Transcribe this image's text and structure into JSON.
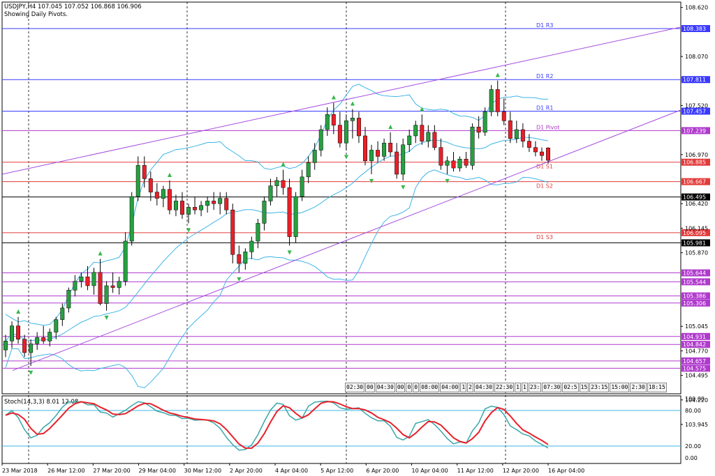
{
  "header": {
    "symbol_line": "USDJPY,H4  107.045 107.052 106.868 106.906",
    "subtitle": "Showing Daily Pivots."
  },
  "stoch_header": "Stoch(14,3,3) 8.01 12.08",
  "price_axis": {
    "min": 103.7,
    "max": 108.8,
    "ticks": [
      "108.620",
      "108.383",
      "108.070",
      "107.811",
      "107.520",
      "107.457",
      "107.239",
      "106.970",
      "106.885",
      "106.667",
      "106.495",
      "106.420",
      "106.145",
      "106.095",
      "105.981",
      "105.870",
      "105.644",
      "105.544",
      "105.386",
      "105.306",
      "105.045",
      "104.931",
      "104.842",
      "104.770",
      "104.657",
      "104.575",
      "104.495",
      "104.220",
      "103.945"
    ]
  },
  "levels": [
    {
      "label": "D1 R3",
      "value": 108.383,
      "tag": "108.383",
      "color": "#3a3aff"
    },
    {
      "label": "D1 R2",
      "value": 107.811,
      "tag": "107.811",
      "color": "#3a3aff"
    },
    {
      "label": "D1 R1",
      "value": 107.457,
      "tag": "107.457",
      "color": "#3a3aff"
    },
    {
      "label": "D1 Pivot",
      "value": 107.239,
      "tag": "107.239",
      "color": "#b03acd"
    },
    {
      "label": "D1 S1",
      "value": 106.885,
      "tag": "106.885",
      "color": "#e33a3a"
    },
    {
      "label": "D1 S2",
      "value": 106.667,
      "tag": "106.667",
      "color": "#e33a3a"
    },
    {
      "label": "",
      "value": 106.495,
      "tag": "106.495",
      "color": "#000000"
    },
    {
      "label": "D1 S3",
      "value": 106.095,
      "tag": "106.095",
      "color": "#e33a3a"
    },
    {
      "label": "",
      "value": 105.981,
      "tag": "105.981",
      "color": "#000000"
    },
    {
      "label": "",
      "value": 105.644,
      "tag": "105.644",
      "color": "#b03acd"
    },
    {
      "label": "",
      "value": 105.544,
      "tag": "105.544",
      "color": "#b03acd"
    },
    {
      "label": "",
      "value": 105.386,
      "tag": "105.386",
      "color": "#b03acd"
    },
    {
      "label": "",
      "value": 105.306,
      "tag": "105.306",
      "color": "#b03acd"
    },
    {
      "label": "",
      "value": 104.931,
      "tag": "104.931",
      "color": "#b03acd"
    },
    {
      "label": "",
      "value": 104.842,
      "tag": "104.842",
      "color": "#b03acd"
    },
    {
      "label": "",
      "value": 104.657,
      "tag": "104.657",
      "color": "#b03acd"
    },
    {
      "label": "",
      "value": 104.575,
      "tag": "104.575",
      "color": "#b03acd"
    }
  ],
  "time_axis": [
    "23 Mar 2018",
    "26 Mar 12:00",
    "27 Mar 20:00",
    "29 Mar 04:00",
    "30 Mar 12:00",
    "2 Apr 20:00",
    "4 Apr 04:00",
    "5 Apr 12:00",
    "6 Apr 20:00",
    "10 Apr 04:00",
    "11 Apr 12:00",
    "12 Apr 20:00",
    "16 Apr 04:00"
  ],
  "session_strip": [
    "02:30",
    "00",
    "04:30",
    "00",
    "0",
    "0",
    "08:00",
    "04:00",
    "1",
    "2",
    "04:30",
    "22:30",
    "1",
    "1",
    "23:",
    "07:30",
    "02:5",
    "15",
    "23:15",
    "15:00",
    "2:30",
    "18:15"
  ],
  "stoch_axis": [
    "100.00",
    "80.00",
    "20.00",
    "0.00"
  ],
  "colors": {
    "bull": "#26a041",
    "bear": "#e8202a",
    "band": "#3db4e6",
    "channel": "#a64de0",
    "signal": "#e8202a",
    "main": "#3aa7a7"
  },
  "chart_data": {
    "type": "candlestick",
    "title": "USDJPY,H4",
    "ylim": [
      103.7,
      108.8
    ],
    "series": [
      {
        "name": "USDJPY",
        "ohlc": [
          [
            104.78,
            104.95,
            104.7,
            104.88
          ],
          [
            104.88,
            105.1,
            104.8,
            105.05
          ],
          [
            105.05,
            105.15,
            104.85,
            104.9
          ],
          [
            104.9,
            104.95,
            104.7,
            104.75
          ],
          [
            104.75,
            104.9,
            104.6,
            104.85
          ],
          [
            104.85,
            104.98,
            104.78,
            104.92
          ],
          [
            104.92,
            105.05,
            104.85,
            104.88
          ],
          [
            104.88,
            105.02,
            104.82,
            104.98
          ],
          [
            104.98,
            105.15,
            104.9,
            105.12
          ],
          [
            105.12,
            105.3,
            105.05,
            105.25
          ],
          [
            105.25,
            105.48,
            105.2,
            105.45
          ],
          [
            105.45,
            105.62,
            105.38,
            105.55
          ],
          [
            105.55,
            105.65,
            105.48,
            105.6
          ],
          [
            105.6,
            105.72,
            105.45,
            105.5
          ],
          [
            105.5,
            105.7,
            105.4,
            105.65
          ],
          [
            105.65,
            105.8,
            105.28,
            105.3
          ],
          [
            105.3,
            105.55,
            105.22,
            105.5
          ],
          [
            105.5,
            105.65,
            105.42,
            105.48
          ],
          [
            105.48,
            105.6,
            105.4,
            105.55
          ],
          [
            105.55,
            106.1,
            105.5,
            106.0
          ],
          [
            106.0,
            106.55,
            105.95,
            106.5
          ],
          [
            106.5,
            106.95,
            106.45,
            106.85
          ],
          [
            106.85,
            106.95,
            106.6,
            106.7
          ],
          [
            106.7,
            106.78,
            106.45,
            106.55
          ],
          [
            106.55,
            106.65,
            106.4,
            106.48
          ],
          [
            106.48,
            106.62,
            106.38,
            106.58
          ],
          [
            106.58,
            106.68,
            106.3,
            106.35
          ],
          [
            106.35,
            106.52,
            106.28,
            106.45
          ],
          [
            106.45,
            106.55,
            106.25,
            106.3
          ],
          [
            106.3,
            106.42,
            106.2,
            106.38
          ],
          [
            106.38,
            106.5,
            106.3,
            106.35
          ],
          [
            106.35,
            106.45,
            106.28,
            106.4
          ],
          [
            106.4,
            106.5,
            106.32,
            106.45
          ],
          [
            106.45,
            106.55,
            106.35,
            106.42
          ],
          [
            106.42,
            106.55,
            106.3,
            106.48
          ],
          [
            106.48,
            106.55,
            106.3,
            106.35
          ],
          [
            106.35,
            106.42,
            105.75,
            105.85
          ],
          [
            105.85,
            105.95,
            105.65,
            105.75
          ],
          [
            105.75,
            105.92,
            105.68,
            105.88
          ],
          [
            105.88,
            106.05,
            105.8,
            106.0
          ],
          [
            106.0,
            106.25,
            105.92,
            106.2
          ],
          [
            106.2,
            106.5,
            106.12,
            106.45
          ],
          [
            106.45,
            106.7,
            106.4,
            106.62
          ],
          [
            106.62,
            106.72,
            106.5,
            106.68
          ],
          [
            106.68,
            106.8,
            106.52,
            106.6
          ],
          [
            106.6,
            106.7,
            105.95,
            106.05
          ],
          [
            106.05,
            106.55,
            105.98,
            106.5
          ],
          [
            106.5,
            106.8,
            106.45,
            106.72
          ],
          [
            106.72,
            106.95,
            106.65,
            106.88
          ],
          [
            106.88,
            107.1,
            106.8,
            107.02
          ],
          [
            107.02,
            107.3,
            106.95,
            107.25
          ],
          [
            107.25,
            107.5,
            107.18,
            107.42
          ],
          [
            107.42,
            107.55,
            107.2,
            107.3
          ],
          [
            107.3,
            107.45,
            107.05,
            107.1
          ],
          [
            107.1,
            107.42,
            107.02,
            107.35
          ],
          [
            107.35,
            107.48,
            107.15,
            107.38
          ],
          [
            107.38,
            107.45,
            107.1,
            107.18
          ],
          [
            107.18,
            107.28,
            106.85,
            106.9
          ],
          [
            106.9,
            107.08,
            106.75,
            107.02
          ],
          [
            107.02,
            107.12,
            106.88,
            106.95
          ],
          [
            106.95,
            107.15,
            106.9,
            107.1
          ],
          [
            107.1,
            107.22,
            106.95,
            107.0
          ],
          [
            107.0,
            107.1,
            106.7,
            106.75
          ],
          [
            106.75,
            107.15,
            106.68,
            107.08
          ],
          [
            107.08,
            107.25,
            107.0,
            107.18
          ],
          [
            107.18,
            107.35,
            107.1,
            107.3
          ],
          [
            107.3,
            107.42,
            107.08,
            107.12
          ],
          [
            107.12,
            107.3,
            107.05,
            107.22
          ],
          [
            107.22,
            107.3,
            107.02,
            107.05
          ],
          [
            107.05,
            107.15,
            106.8,
            106.85
          ],
          [
            106.85,
            106.95,
            106.75,
            106.9
          ],
          [
            106.9,
            107.0,
            106.78,
            106.82
          ],
          [
            106.82,
            106.95,
            106.78,
            106.92
          ],
          [
            106.92,
            107.0,
            106.82,
            106.85
          ],
          [
            106.85,
            107.32,
            106.8,
            107.28
          ],
          [
            107.28,
            107.4,
            107.15,
            107.22
          ],
          [
            107.22,
            107.5,
            107.18,
            107.45
          ],
          [
            107.45,
            107.75,
            107.4,
            107.7
          ],
          [
            107.7,
            107.8,
            107.4,
            107.45
          ],
          [
            107.45,
            107.6,
            107.3,
            107.35
          ],
          [
            107.35,
            107.45,
            107.1,
            107.15
          ],
          [
            107.15,
            107.35,
            107.1,
            107.25
          ],
          [
            107.25,
            107.32,
            107.05,
            107.12
          ],
          [
            107.12,
            107.2,
            107.0,
            107.05
          ],
          [
            107.05,
            107.12,
            106.95,
            107.0
          ],
          [
            107.0,
            107.05,
            106.9,
            106.96
          ],
          [
            107.045,
            107.052,
            106.868,
            106.906
          ]
        ]
      }
    ]
  }
}
